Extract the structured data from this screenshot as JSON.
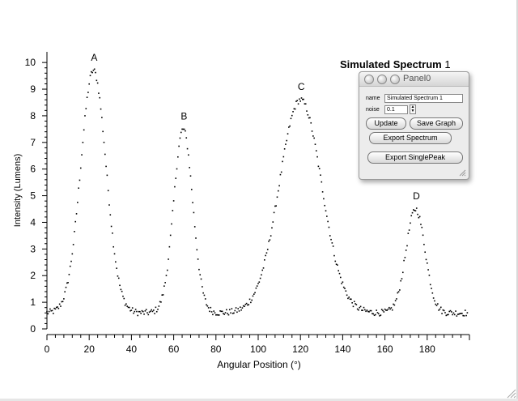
{
  "panel": {
    "title": "Panel0",
    "name_label": "name",
    "name_value": "Simulated Spectrum 1",
    "noise_label": "noise",
    "noise_value": "0.1",
    "buttons": {
      "update": "Update",
      "save_graph": "Save Graph",
      "export_spectrum": "Export Spectrum",
      "export_single_peak": "Export SinglePeak"
    }
  },
  "chart_data": {
    "type": "scatter",
    "title": "Simulated Spectrum",
    "title_number": "1",
    "xlabel": "Angular Position (°)",
    "ylabel": "Intensity (Lumens)",
    "xlim": [
      0,
      200
    ],
    "ylim": [
      0,
      10.4
    ],
    "xticks": [
      0,
      20,
      40,
      60,
      80,
      100,
      120,
      140,
      160,
      180
    ],
    "yticks": [
      0,
      1,
      2,
      3,
      4,
      5,
      6,
      7,
      8,
      9,
      10
    ],
    "grid": false,
    "baseline": 0.6,
    "noise": 0.1,
    "peaks": [
      {
        "label": "A",
        "center": 22,
        "height": 9.7
      },
      {
        "label": "B",
        "center": 64.5,
        "height": 7.5
      },
      {
        "label": "C",
        "center": 120,
        "height": 8.6
      },
      {
        "label": "D",
        "center": 174.5,
        "height": 4.5
      }
    ],
    "peak_widths": [
      6,
      4.5,
      10,
      4.5
    ],
    "x_step": 0.5,
    "marker_color": "#000000"
  }
}
